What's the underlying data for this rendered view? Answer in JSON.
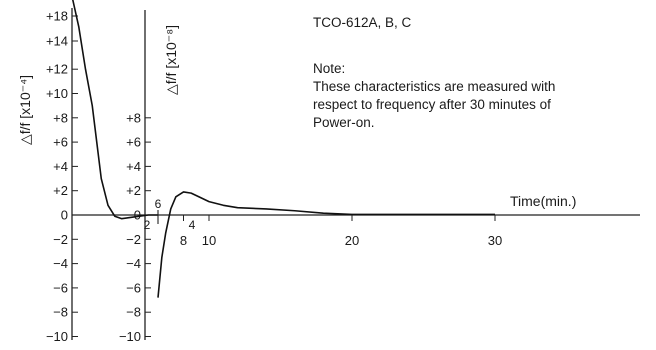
{
  "chart_data": {
    "type": "line",
    "title": "TCO-612A, B, C",
    "note_heading": "Note:",
    "note_lines": [
      "These characteristics are measured with",
      "respect to frequency after 30 minutes of",
      "Power-on."
    ],
    "xlabel": "Time(min.)",
    "ylabel_outer": "△f/f [x10⁻⁴]",
    "ylabel_inner": "△f/f [x10⁻⁸]",
    "outer_axis_ticks": [
      "+18",
      "+14",
      "+12",
      "+10",
      "+8",
      "+6",
      "+4",
      "+2",
      "0",
      "−2",
      "−4",
      "−6",
      "−8",
      "−10"
    ],
    "inner_axis_ticks": [
      "+8",
      "+6",
      "+4",
      "+2",
      "0",
      "−2",
      "−4",
      "−6",
      "−8",
      "−10"
    ],
    "xticks_segment1": [
      "2",
      "4"
    ],
    "xticks_segment2": [
      "6",
      "8",
      "10",
      "20",
      "30"
    ],
    "series": [
      {
        "units": "x10^-4",
        "x": [
          0,
          0.3,
          0.6,
          0.9,
          1.1,
          1.3,
          1.6,
          1.9,
          2.2,
          2.6,
          3.0,
          3.4,
          3.8
        ],
        "y": [
          18,
          15.5,
          12,
          9,
          6,
          3,
          0.8,
          -0.1,
          -0.3,
          -0.2,
          -0.1,
          0,
          0
        ]
      },
      {
        "units": "x10^-8",
        "x": [
          6,
          6.3,
          6.6,
          7.0,
          7.4,
          8.0,
          8.6,
          9.2,
          10,
          11,
          12,
          14,
          16,
          18,
          20,
          25,
          30
        ],
        "y": [
          -6.8,
          -3.5,
          -1.5,
          0.5,
          1.5,
          1.9,
          1.8,
          1.5,
          1.1,
          0.8,
          0.6,
          0.5,
          0.35,
          0.15,
          0.05,
          0.05,
          0.05
        ]
      }
    ]
  }
}
